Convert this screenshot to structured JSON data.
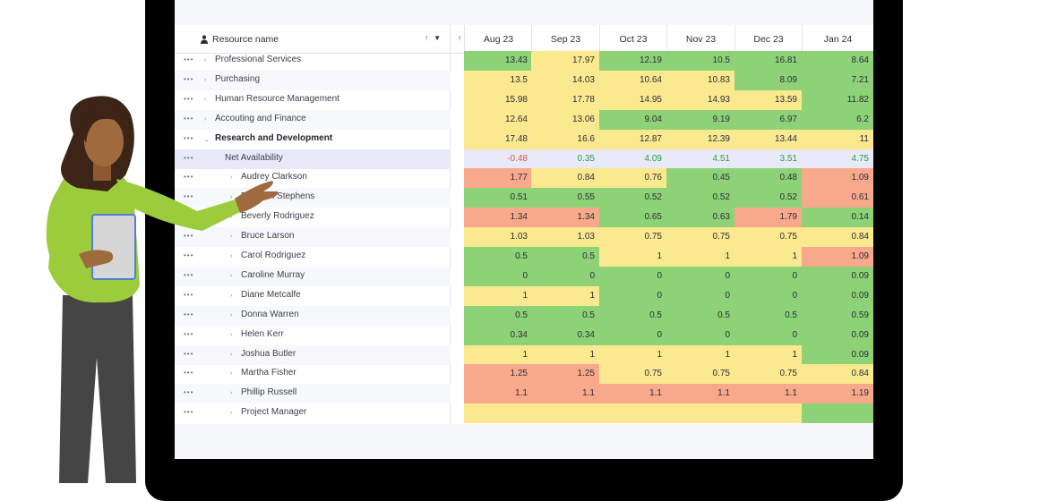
{
  "header": {
    "resource_name_label": "Resource name",
    "sort_icons": "↑ ▼",
    "mid_icon": "↑",
    "months": [
      "Aug 23",
      "Sep 23",
      "Oct 23",
      "Nov 23",
      "Dec 23",
      "Jan 24"
    ]
  },
  "colors": {
    "green": "#8dd277",
    "yellow": "#fbe98f",
    "red": "#f8a98b",
    "net": "#e8ebf7"
  },
  "rows": [
    {
      "label": "Professional Services",
      "indent": 0,
      "chevron": "›",
      "bold": false,
      "values": [
        "13.43",
        "17.97",
        "12.19",
        "10.5",
        "16.81",
        "8.64"
      ],
      "colors": [
        "g",
        "y",
        "g",
        "g",
        "g",
        "g"
      ]
    },
    {
      "label": "Purchasing",
      "indent": 0,
      "chevron": "›",
      "bold": false,
      "values": [
        "13.5",
        "14.03",
        "10.64",
        "10.83",
        "8.09",
        "7.21"
      ],
      "colors": [
        "y",
        "y",
        "y",
        "y",
        "g",
        "g"
      ]
    },
    {
      "label": "Human Resource Management",
      "indent": 0,
      "chevron": "›",
      "bold": false,
      "values": [
        "15.98",
        "17.78",
        "14.95",
        "14.93",
        "13.59",
        "11.82"
      ],
      "colors": [
        "y",
        "y",
        "y",
        "y",
        "y",
        "g"
      ]
    },
    {
      "label": "Accouting and Finance",
      "indent": 0,
      "chevron": "›",
      "bold": false,
      "values": [
        "12.64",
        "13.06",
        "9.04",
        "9.19",
        "6.97",
        "6.2"
      ],
      "colors": [
        "y",
        "y",
        "g",
        "g",
        "g",
        "g"
      ]
    },
    {
      "label": "Research and Development",
      "indent": 0,
      "chevron": "⌄",
      "bold": true,
      "values": [
        "17.48",
        "16.6",
        "12.87",
        "12.39",
        "13.44",
        "11"
      ],
      "colors": [
        "y",
        "y",
        "y",
        "y",
        "y",
        "y"
      ]
    },
    {
      "label": "Net Availability",
      "indent": 1,
      "chevron": "",
      "bold": false,
      "net": true,
      "values": [
        "-0.48",
        "0.35",
        "4.09",
        "4.51",
        "3.51",
        "4.75"
      ],
      "colors": [
        "n",
        "n",
        "n",
        "n",
        "n",
        "n"
      ]
    },
    {
      "label": "Audrey Clarkson",
      "indent": 2,
      "chevron": "›",
      "bold": false,
      "values": [
        "1.77",
        "0.84",
        "0.76",
        "0.45",
        "0.48",
        "1.09"
      ],
      "colors": [
        "r",
        "y",
        "y",
        "g",
        "g",
        "r"
      ]
    },
    {
      "label": "Bethanh Stephens",
      "indent": 2,
      "chevron": "›",
      "bold": false,
      "values": [
        "0.51",
        "0.55",
        "0.52",
        "0.52",
        "0.52",
        "0.61"
      ],
      "colors": [
        "g",
        "g",
        "g",
        "g",
        "g",
        "r"
      ]
    },
    {
      "label": "Beverly Rodriguez",
      "indent": 2,
      "chevron": "›",
      "bold": false,
      "values": [
        "1.34",
        "1.34",
        "0.65",
        "0.63",
        "1.79",
        "0.14"
      ],
      "colors": [
        "r",
        "r",
        "g",
        "g",
        "r",
        "g"
      ]
    },
    {
      "label": "Bruce Larson",
      "indent": 2,
      "chevron": "›",
      "bold": false,
      "values": [
        "1.03",
        "1.03",
        "0.75",
        "0.75",
        "0.75",
        "0.84"
      ],
      "colors": [
        "y",
        "y",
        "y",
        "y",
        "y",
        "y"
      ]
    },
    {
      "label": "Carol Rodriguez",
      "indent": 2,
      "chevron": "›",
      "bold": false,
      "values": [
        "0.5",
        "0.5",
        "1",
        "1",
        "1",
        "1.09"
      ],
      "colors": [
        "g",
        "g",
        "y",
        "y",
        "y",
        "r"
      ]
    },
    {
      "label": "Caroline Murray",
      "indent": 2,
      "chevron": "›",
      "bold": false,
      "values": [
        "0",
        "0",
        "0",
        "0",
        "0",
        "0.09"
      ],
      "colors": [
        "g",
        "g",
        "g",
        "g",
        "g",
        "g"
      ]
    },
    {
      "label": "Diane Metcalfe",
      "indent": 2,
      "chevron": "›",
      "bold": false,
      "values": [
        "1",
        "1",
        "0",
        "0",
        "0",
        "0.09"
      ],
      "colors": [
        "y",
        "y",
        "g",
        "g",
        "g",
        "g"
      ]
    },
    {
      "label": "Donna Warren",
      "indent": 2,
      "chevron": "›",
      "bold": false,
      "values": [
        "0.5",
        "0.5",
        "0.5",
        "0.5",
        "0.5",
        "0.59"
      ],
      "colors": [
        "g",
        "g",
        "g",
        "g",
        "g",
        "g"
      ]
    },
    {
      "label": "Helen Kerr",
      "indent": 2,
      "chevron": "›",
      "bold": false,
      "values": [
        "0.34",
        "0.34",
        "0",
        "0",
        "0",
        "0.09"
      ],
      "colors": [
        "g",
        "g",
        "g",
        "g",
        "g",
        "g"
      ]
    },
    {
      "label": "Joshua Butler",
      "indent": 2,
      "chevron": "›",
      "bold": false,
      "values": [
        "1",
        "1",
        "1",
        "1",
        "1",
        "0.09"
      ],
      "colors": [
        "y",
        "y",
        "y",
        "y",
        "y",
        "g"
      ]
    },
    {
      "label": "Martha Fisher",
      "indent": 2,
      "chevron": "›",
      "bold": false,
      "values": [
        "1.25",
        "1.25",
        "0.75",
        "0.75",
        "0.75",
        "0.84"
      ],
      "colors": [
        "r",
        "r",
        "y",
        "y",
        "y",
        "y"
      ]
    },
    {
      "label": "Phillip Russell",
      "indent": 2,
      "chevron": "›",
      "bold": false,
      "values": [
        "1.1",
        "1.1",
        "1.1",
        "1.1",
        "1.1",
        "1.19"
      ],
      "colors": [
        "r",
        "r",
        "r",
        "r",
        "r",
        "r"
      ]
    },
    {
      "label": "Project Manager",
      "indent": 2,
      "chevron": "›",
      "bold": false,
      "values": [
        "",
        "",
        "",
        "",
        "",
        ""
      ],
      "colors": [
        "y",
        "y",
        "y",
        "y",
        "y",
        "g"
      ]
    }
  ]
}
